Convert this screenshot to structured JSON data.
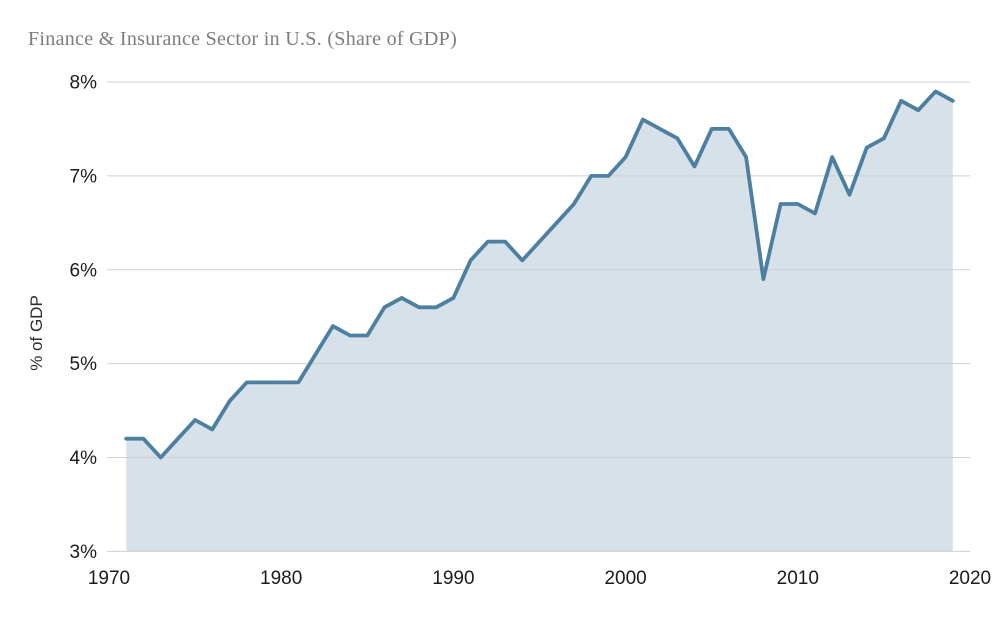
{
  "chart_data": {
    "type": "area",
    "title": "Finance & Insurance Sector in U.S. (Share of GDP)",
    "ylabel": "% of GDP",
    "xlabel": "",
    "legend": "none",
    "grid": "horizontal",
    "xlim": [
      1970,
      2020
    ],
    "ylim": [
      3,
      8
    ],
    "x_tick_labels": [
      "1970",
      "1980",
      "1990",
      "2000",
      "2010",
      "2020"
    ],
    "x_tick_values": [
      1970,
      1980,
      1990,
      2000,
      2010,
      2020
    ],
    "y_tick_labels": [
      "8%",
      "7%",
      "6%",
      "5%",
      "4%",
      "3%"
    ],
    "y_tick_values": [
      8,
      7,
      6,
      5,
      4,
      3
    ],
    "years": [
      1971,
      1972,
      1973,
      1974,
      1975,
      1976,
      1977,
      1978,
      1979,
      1980,
      1981,
      1982,
      1983,
      1984,
      1985,
      1986,
      1987,
      1988,
      1989,
      1990,
      1991,
      1992,
      1993,
      1994,
      1995,
      1996,
      1997,
      1998,
      1999,
      2000,
      2001,
      2002,
      2003,
      2004,
      2005,
      2006,
      2007,
      2008,
      2009,
      2010,
      2011,
      2012,
      2013,
      2014,
      2015,
      2016,
      2017,
      2018,
      2019
    ],
    "values": [
      4.2,
      4.2,
      4.0,
      4.2,
      4.4,
      4.3,
      4.6,
      4.8,
      4.8,
      4.8,
      4.8,
      5.1,
      5.4,
      5.3,
      5.3,
      5.6,
      5.7,
      5.6,
      5.6,
      5.7,
      6.1,
      6.3,
      6.3,
      6.1,
      6.3,
      6.5,
      6.7,
      7.0,
      7.0,
      7.2,
      7.6,
      7.5,
      7.4,
      7.1,
      7.5,
      7.5,
      7.2,
      5.9,
      6.7,
      6.7,
      6.6,
      7.2,
      6.8,
      7.3,
      7.4,
      7.8,
      7.7,
      7.9,
      7.8
    ],
    "colors": {
      "line": "#4d7fa0",
      "fill": "#d6e1e9",
      "grid": "#cfcfcf",
      "title": "#7d7d7d",
      "tick": "#1b1b1b",
      "axis_label": "#2e2e2e",
      "background": "#ffffff"
    }
  }
}
